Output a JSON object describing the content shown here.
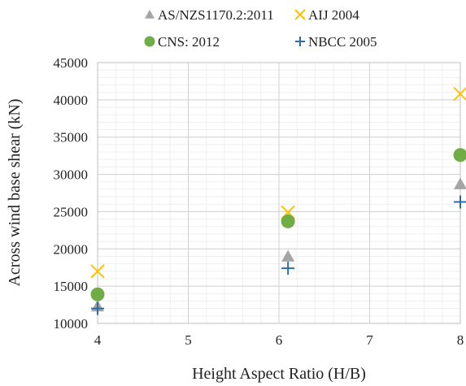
{
  "chart_data": {
    "type": "scatter",
    "xlabel": "Height Aspect Ratio (H/B)",
    "ylabel": "Across wind base shear (kN)",
    "xlim": [
      4,
      8
    ],
    "ylim": [
      10000,
      45000
    ],
    "x_ticks": [
      "4",
      "5",
      "6",
      "7",
      "8"
    ],
    "y_ticks": [
      "10000",
      "15000",
      "20000",
      "25000",
      "30000",
      "35000",
      "40000",
      "45000"
    ],
    "grid": true,
    "legend_position": "top",
    "series": [
      {
        "name": "AS/NZS1170.2:2011",
        "marker": "triangle",
        "color": "#a5a5a5",
        "points": [
          [
            4,
            12300
          ],
          [
            6.1,
            19000
          ],
          [
            8,
            28700
          ]
        ]
      },
      {
        "name": "AIJ 2004",
        "marker": "x",
        "color": "#ffc000",
        "points": [
          [
            4,
            17000
          ],
          [
            6.1,
            24900
          ],
          [
            8,
            40800
          ]
        ]
      },
      {
        "name": "CNS: 2012",
        "marker": "circle",
        "color": "#70ad47",
        "points": [
          [
            4,
            13900
          ],
          [
            6.1,
            23700
          ],
          [
            8,
            32600
          ]
        ]
      },
      {
        "name": "NBCC 2005",
        "marker": "plus",
        "color": "#2e6ca4",
        "points": [
          [
            4,
            12000
          ],
          [
            6.1,
            17400
          ],
          [
            8,
            26300
          ]
        ]
      }
    ]
  }
}
